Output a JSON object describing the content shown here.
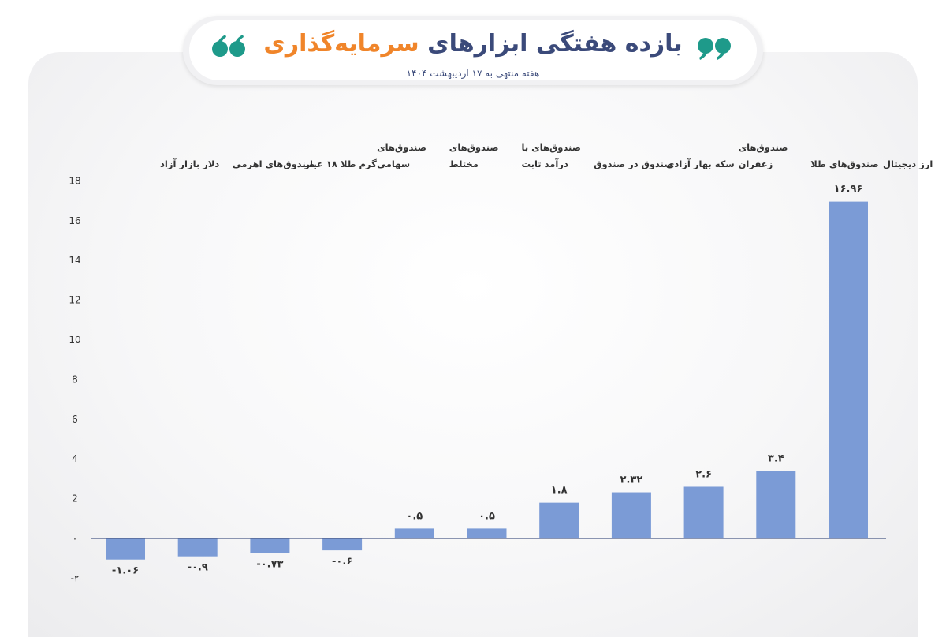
{
  "header": {
    "title_part1": "بازده هفتگی ابزارهای",
    "title_part2": "سرمایه‌گذاری",
    "subtitle": "هفته منتهی به ۱۷ اردیبهشت ۱۴۰۴",
    "title_color": "#3b4a7a",
    "accent_color": "#f0852a",
    "quote_color": "#1e9a8a"
  },
  "chart_data": {
    "type": "bar",
    "title": "بازده هفتگی ابزارهای سرمایه‌گذاری",
    "subtitle": "هفته منتهی به ۱۷ اردیبهشت ۱۴۰۴",
    "categories": [
      "ارز دیجیتال",
      "صندوق‌های طلا",
      "صندوق‌های زعفران",
      "سکه بهار آزادی",
      "صندوق در صندوق",
      "صندوق‌های با درآمد ثابت",
      "صندوق‌های مختلط",
      "صندوق‌های سهامی",
      "گرم طلا ۱۸ عیار",
      "صندوق‌های اهرمی",
      "دلار بازار آزاد"
    ],
    "category_lines": [
      [
        "ارز دیجیتال"
      ],
      [
        "صندوق‌های طلا"
      ],
      [
        "صندوق‌های",
        "زعفران"
      ],
      [
        "سکه بهار آزادی"
      ],
      [
        "صندوق در صندوق"
      ],
      [
        "صندوق‌های با",
        "درآمد ثابت"
      ],
      [
        "صندوق‌های",
        "مختلط"
      ],
      [
        "صندوق‌های",
        "سهامی"
      ],
      [
        "گرم طلا ۱۸ عیار"
      ],
      [
        "صندوق‌های اهرمی"
      ],
      [
        "دلار بازار آزاد"
      ]
    ],
    "values": [
      16.96,
      3.4,
      2.6,
      2.32,
      1.8,
      0.5,
      0.5,
      -0.6,
      -0.73,
      -0.9,
      -1.06
    ],
    "value_labels": [
      "۱۶.۹۶",
      "۳.۴",
      "۲.۶",
      "۲.۳۲",
      "۱.۸",
      "۰.۵",
      "۰.۵",
      "-۰.۶",
      "-۰.۷۳",
      "-۰.۹",
      "-۱.۰۶"
    ],
    "ylim": [
      -2,
      18
    ],
    "yticks": [
      -2,
      0,
      2,
      4,
      6,
      8,
      10,
      12,
      14,
      16,
      18
    ],
    "ytick_labels": [
      "-۲",
      "۰",
      "2",
      "4",
      "6",
      "8",
      "10",
      "12",
      "14",
      "16",
      "18"
    ],
    "bar_color": "#7b9bd6",
    "grid": false,
    "legend": "none",
    "xlabel": "",
    "ylabel": ""
  }
}
